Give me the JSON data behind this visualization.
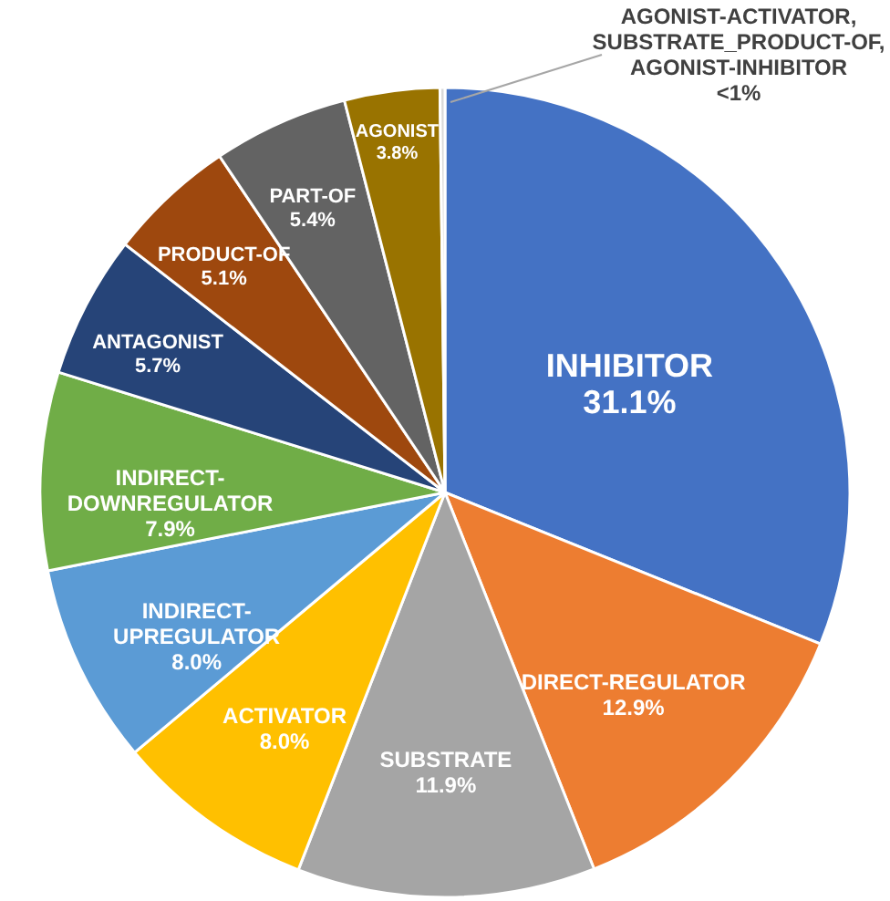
{
  "chart_data": {
    "type": "pie",
    "categories": [
      "INHIBITOR",
      "DIRECT-REGULATOR",
      "SUBSTRATE",
      "ACTIVATOR",
      "INDIRECT-UPREGULATOR",
      "INDIRECT-DOWNREGULATOR",
      "ANTAGONIST",
      "PRODUCT-OF",
      "PART-OF",
      "AGONIST",
      "AGONIST-ACTIVATOR, SUBSTRATE_PRODUCT-OF, AGONIST-INHIBITOR"
    ],
    "values": [
      31.1,
      12.9,
      11.9,
      8.0,
      8.0,
      7.9,
      5.7,
      5.1,
      5.4,
      3.8,
      0.2
    ],
    "value_labels": [
      "31.1%",
      "12.9%",
      "11.9%",
      "8.0%",
      "8.0%",
      "7.9%",
      "5.7%",
      "5.1%",
      "5.4%",
      "3.8%",
      "<1%"
    ],
    "colors": [
      "#4472c4",
      "#ed7d31",
      "#a5a5a5",
      "#ffc000",
      "#5b9bd5",
      "#70ad47",
      "#264478",
      "#9e480e",
      "#636363",
      "#997300",
      "#d9d9d9"
    ],
    "legend": false
  }
}
